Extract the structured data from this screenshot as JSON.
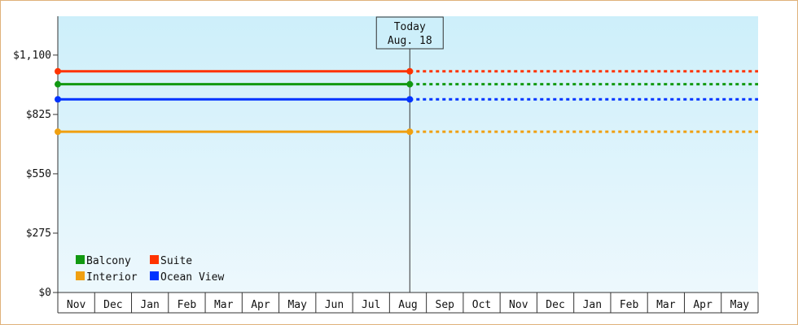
{
  "chart_data": {
    "type": "line",
    "title": "",
    "xlabel": "",
    "ylabel": "",
    "ylim": [
      0,
      1280
    ],
    "y_ticks": [
      {
        "value": 0,
        "label": "$0"
      },
      {
        "value": 275,
        "label": "$275"
      },
      {
        "value": 550,
        "label": "$550"
      },
      {
        "value": 825,
        "label": "$825"
      },
      {
        "value": 1100,
        "label": "$1,100"
      }
    ],
    "categories": [
      "Nov",
      "Dec",
      "Jan",
      "Feb",
      "Mar",
      "Apr",
      "May",
      "Jun",
      "Jul",
      "Aug",
      "Sep",
      "Oct",
      "Nov",
      "Dec",
      "Jan",
      "Feb",
      "Mar",
      "Apr",
      "May"
    ],
    "today": {
      "line1": "Today",
      "line2": "Aug. 18",
      "month_index": 9.55
    },
    "series": [
      {
        "name": "Suite",
        "color": "#ff3300",
        "value": 1025
      },
      {
        "name": "Balcony",
        "color": "#119911",
        "value": 965
      },
      {
        "name": "Ocean View",
        "color": "#0033ff",
        "value": 895
      },
      {
        "name": "Interior",
        "color": "#f0a010",
        "value": 745
      }
    ],
    "legend": {
      "placement": "bottom-left",
      "order": [
        "Balcony",
        "Suite",
        "Interior",
        "Ocean View"
      ]
    },
    "background": {
      "top": "#cdeffa",
      "bottom": "#edf8fd"
    },
    "grid": false
  }
}
